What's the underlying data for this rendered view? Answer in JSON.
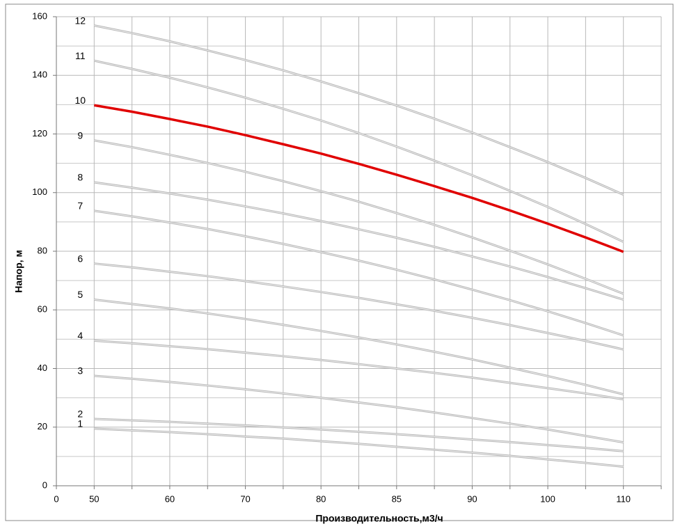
{
  "chart_data": {
    "type": "line",
    "x_label": "Производительность,м3/ч",
    "y_label": "Напор, м",
    "categories": [
      "0",
      "50",
      null,
      "60",
      null,
      "70",
      null,
      "80",
      null,
      "85",
      null,
      "90",
      null,
      "100",
      null,
      "110",
      null
    ],
    "ylim": [
      0,
      160
    ],
    "yticks": [
      0,
      20,
      40,
      60,
      80,
      100,
      120,
      140,
      160
    ],
    "grid": true,
    "series": [
      {
        "name": "1",
        "color": "#b4b4b4",
        "values": [
          null,
          19.5,
          18.9,
          18.3,
          17.6,
          16.8,
          16.1,
          15.2,
          14.3,
          13.3,
          12.3,
          11.3,
          10.2,
          9.0,
          7.8,
          6.5,
          null
        ]
      },
      {
        "name": "2",
        "color": "#b4b4b4",
        "values": [
          null,
          22.8,
          22.3,
          21.8,
          21.2,
          20.6,
          19.9,
          19.2,
          18.4,
          17.6,
          16.7,
          15.8,
          14.9,
          13.9,
          12.9,
          11.8,
          null
        ]
      },
      {
        "name": "3",
        "color": "#b4b4b4",
        "values": [
          null,
          37.5,
          36.5,
          35.4,
          34.2,
          32.9,
          31.5,
          30.0,
          28.4,
          26.8,
          25.0,
          23.1,
          21.2,
          19.2,
          17.0,
          14.8,
          null
        ]
      },
      {
        "name": "4",
        "color": "#b4b4b4",
        "values": [
          null,
          49.5,
          48.6,
          47.6,
          46.6,
          45.4,
          44.2,
          42.9,
          41.5,
          40.0,
          38.5,
          36.9,
          35.1,
          33.3,
          31.5,
          29.5,
          null
        ]
      },
      {
        "name": "5",
        "color": "#b4b4b4",
        "values": [
          null,
          63.5,
          62.0,
          60.5,
          58.8,
          56.9,
          54.9,
          52.8,
          50.6,
          48.2,
          45.7,
          43.1,
          40.3,
          37.4,
          34.4,
          31.2,
          null
        ]
      },
      {
        "name": "6",
        "color": "#b4b4b4",
        "values": [
          null,
          75.8,
          74.5,
          73.0,
          71.5,
          69.8,
          68.0,
          66.1,
          64.1,
          61.9,
          59.7,
          57.3,
          54.8,
          52.1,
          49.4,
          46.5,
          null
        ]
      },
      {
        "name": "7",
        "color": "#b4b4b4",
        "values": [
          null,
          93.8,
          91.9,
          89.8,
          87.6,
          85.1,
          82.5,
          79.7,
          76.8,
          73.7,
          70.4,
          66.9,
          63.3,
          59.5,
          55.5,
          51.3,
          null
        ]
      },
      {
        "name": "8",
        "color": "#b4b4b4",
        "values": [
          null,
          103.5,
          101.7,
          99.7,
          97.6,
          95.3,
          92.9,
          90.3,
          87.5,
          84.6,
          81.5,
          78.2,
          74.8,
          71.2,
          67.4,
          63.5,
          null
        ]
      },
      {
        "name": "9",
        "color": "#b4b4b4",
        "values": [
          null,
          117.8,
          115.5,
          112.9,
          110.1,
          107.1,
          103.9,
          100.5,
          96.9,
          93.0,
          89.0,
          84.7,
          80.2,
          75.5,
          70.6,
          65.5,
          null
        ]
      },
      {
        "name": "10",
        "color": "#e00000",
        "values": [
          null,
          129.8,
          127.6,
          125.1,
          122.5,
          119.6,
          116.5,
          113.3,
          109.8,
          106.1,
          102.2,
          98.2,
          93.9,
          89.4,
          84.7,
          79.8,
          null
        ]
      },
      {
        "name": "11",
        "color": "#b4b4b4",
        "values": [
          null,
          145.0,
          142.2,
          139.2,
          135.9,
          132.4,
          128.6,
          124.6,
          120.3,
          115.7,
          110.9,
          105.9,
          100.6,
          95.1,
          89.3,
          83.2,
          null
        ]
      },
      {
        "name": "12",
        "color": "#b4b4b4",
        "values": [
          null,
          157.0,
          154.4,
          151.6,
          148.5,
          145.2,
          141.7,
          137.9,
          133.9,
          129.7,
          125.2,
          120.5,
          115.5,
          110.4,
          105.0,
          99.3,
          null
        ]
      }
    ]
  }
}
